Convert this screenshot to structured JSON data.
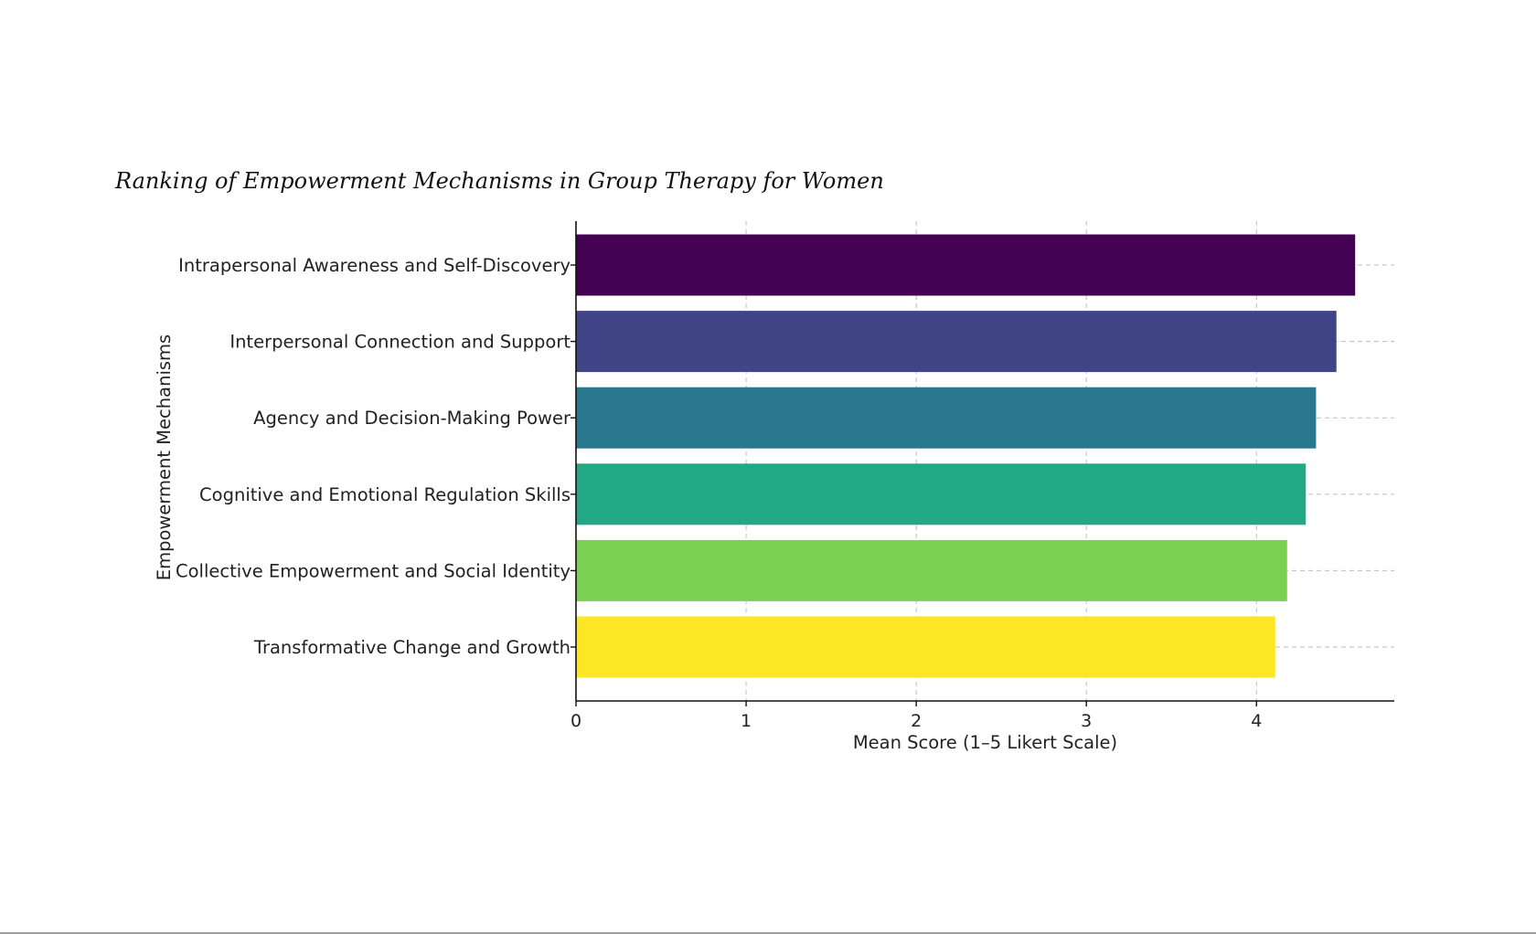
{
  "chart_data": {
    "type": "bar",
    "orientation": "horizontal",
    "title": "Ranking of Empowerment Mechanisms in Group Therapy for Women",
    "xlabel": "Mean Score (1–5 Likert Scale)",
    "ylabel": "Empowerment Mechanisms",
    "categories": [
      "Intrapersonal Awareness and Self-Discovery",
      "Interpersonal Connection and Support",
      "Agency and Decision-Making Power",
      "Cognitive and Emotional Regulation Skills",
      "Collective Empowerment and Social Identity",
      "Transformative Change and Growth"
    ],
    "values": [
      4.58,
      4.47,
      4.35,
      4.29,
      4.18,
      4.11
    ],
    "colors": [
      "#440154",
      "#414487",
      "#2a788e",
      "#22a884",
      "#7ad151",
      "#fde725"
    ],
    "xlim": [
      0,
      4.81
    ],
    "xticks": [
      0,
      1,
      2,
      3,
      4
    ],
    "grid": true,
    "legend": "none"
  }
}
